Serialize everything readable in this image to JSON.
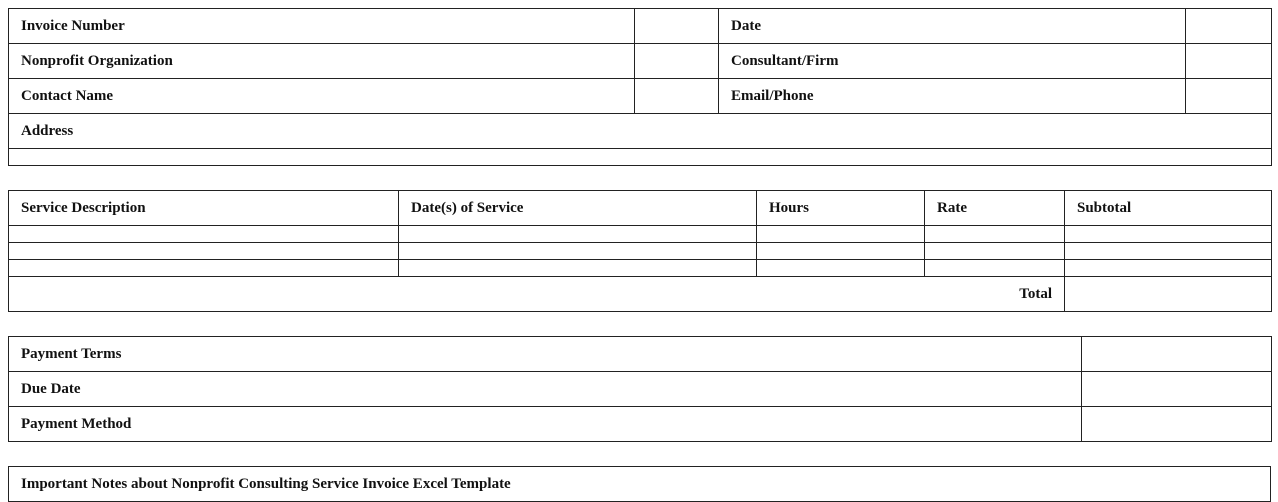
{
  "info_table": {
    "rows": [
      {
        "left_label": "Invoice Number",
        "left_value": "",
        "right_label": "Date",
        "right_value": ""
      },
      {
        "left_label": "Nonprofit Organization",
        "left_value": "",
        "right_label": "Consultant/Firm",
        "right_value": ""
      },
      {
        "left_label": "Contact Name",
        "left_value": "",
        "right_label": "Email/Phone",
        "right_value": ""
      }
    ],
    "address_label": "Address",
    "address_value": ""
  },
  "services_table": {
    "headers": [
      "Service Description",
      "Date(s) of Service",
      "Hours",
      "Rate",
      "Subtotal"
    ],
    "rows": [
      [
        "",
        "",
        "",
        "",
        ""
      ],
      [
        "",
        "",
        "",
        "",
        ""
      ],
      [
        "",
        "",
        "",
        "",
        ""
      ]
    ],
    "total_label": "Total",
    "total_value": ""
  },
  "payment_table": {
    "rows": [
      {
        "label": "Payment Terms",
        "value": ""
      },
      {
        "label": "Due Date",
        "value": ""
      },
      {
        "label": "Payment Method",
        "value": ""
      }
    ]
  },
  "notes": {
    "title": "Important Notes about Nonprofit Consulting Service Invoice Excel Template"
  }
}
